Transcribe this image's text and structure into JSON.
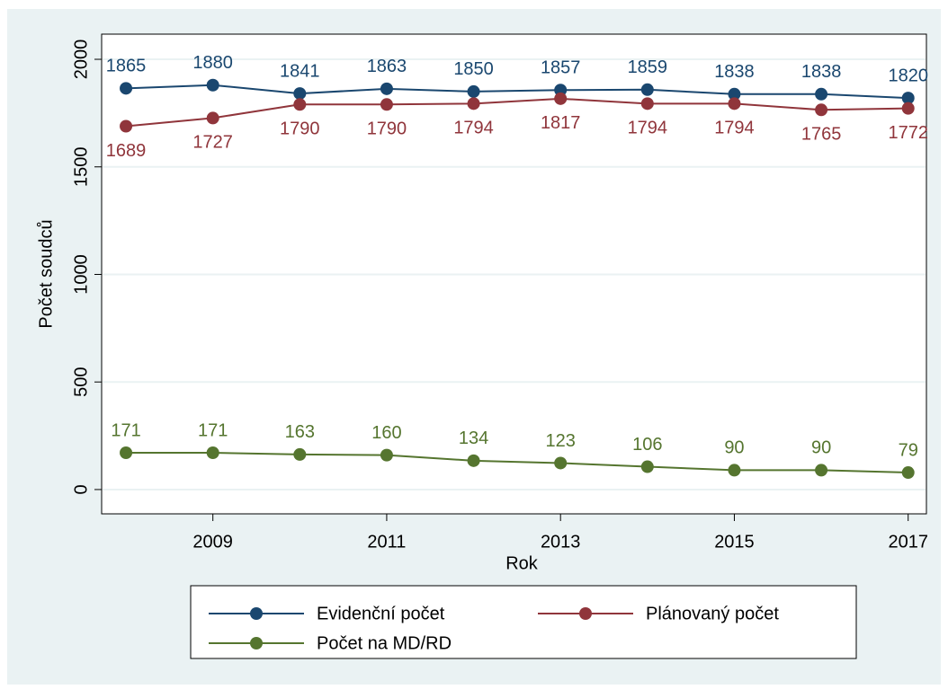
{
  "chart_data": {
    "type": "line",
    "x_label": "Rok",
    "y_label": "Počet soudců",
    "x": [
      2008,
      2009,
      2010,
      2011,
      2012,
      2013,
      2014,
      2015,
      2016,
      2017
    ],
    "series": [
      {
        "name": "Evidenční počet",
        "color": "#1a476f",
        "label_position": "above",
        "values": [
          1865,
          1880,
          1841,
          1863,
          1850,
          1857,
          1859,
          1838,
          1838,
          1820
        ]
      },
      {
        "name": "Plánovaný počet",
        "color": "#90353b",
        "label_position": "below",
        "values": [
          1689,
          1727,
          1790,
          1790,
          1794,
          1817,
          1794,
          1794,
          1765,
          1772
        ]
      },
      {
        "name": "Počet na MD/RD",
        "color": "#55752f",
        "label_position": "above",
        "values": [
          171,
          171,
          163,
          160,
          134,
          123,
          106,
          90,
          90,
          79
        ]
      }
    ],
    "xlim": [
      2007.72,
      2017.21
    ],
    "xticks": [
      2009,
      2011,
      2013,
      2015,
      2017
    ],
    "ylim": [
      -113,
      2117
    ],
    "yticks": [
      0,
      500,
      1000,
      1500,
      2000
    ],
    "grid": true
  }
}
